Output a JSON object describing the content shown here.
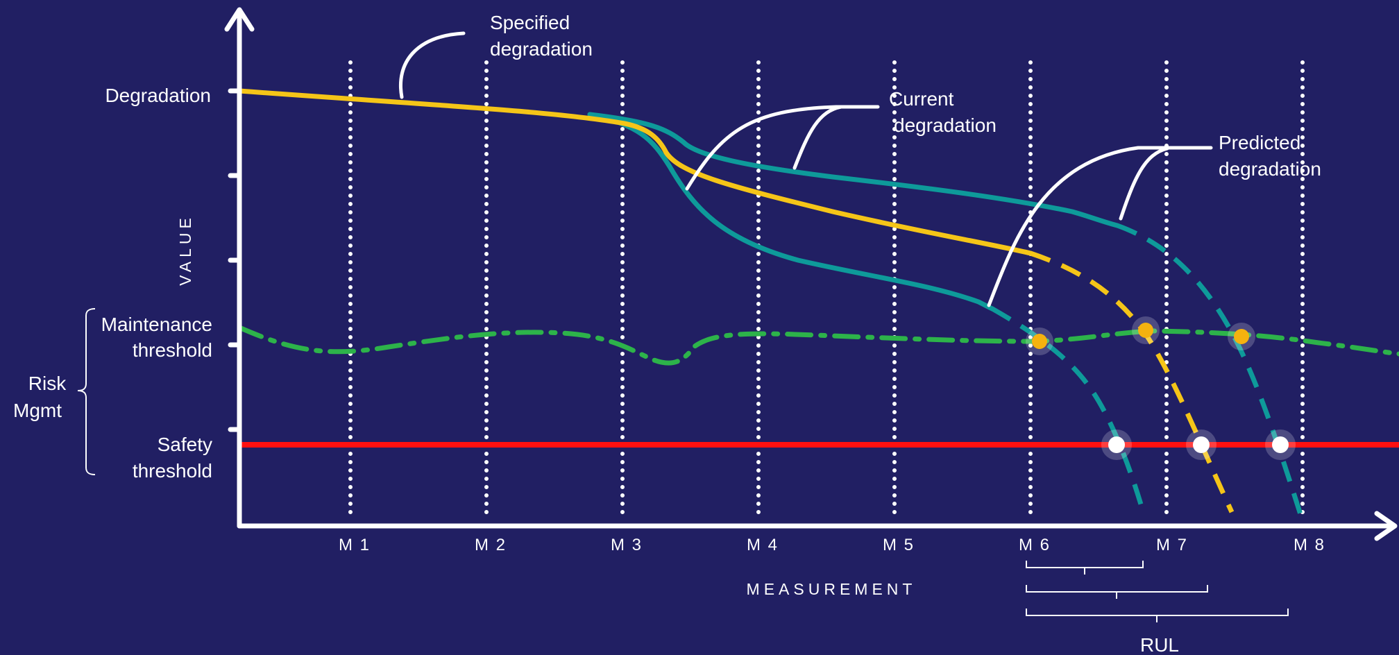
{
  "diagram": {
    "y_axis_title": "VALUE",
    "x_axis_title": "MEASUREMENT",
    "y_labels": {
      "degradation": "Degradation",
      "maintenance_threshold": [
        "Maintenance",
        "threshold"
      ],
      "safety_threshold": [
        "Safety",
        "threshold"
      ]
    },
    "risk_mgmt": [
      "Risk",
      "Mgmt"
    ],
    "x_ticks": [
      "M 1",
      "M 2",
      "M 3",
      "M 4",
      "M 5",
      "M 6",
      "M 7",
      "M 8"
    ],
    "callouts": {
      "specified": [
        "Specified",
        "degradation"
      ],
      "current": [
        "Current",
        "degradation"
      ],
      "predicted": [
        "Predicted",
        "degradation"
      ]
    },
    "rul_label": "RUL",
    "colors": {
      "background": "#211f63",
      "axis": "#ffffff",
      "specified_curve": "#f5c518",
      "current_curve": "#0e9a9a",
      "maintenance_line": "#2db34a",
      "safety_line": "#ff1010",
      "maintenance_marker": "#f5b20f",
      "safety_marker": "#ffffff"
    }
  }
}
